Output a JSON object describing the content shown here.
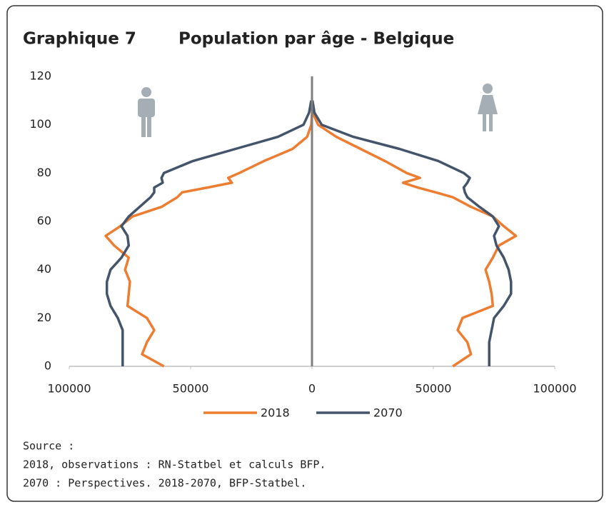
{
  "chart_data": {
    "type": "pyramid",
    "title_number": "Graphique 7",
    "title": "Population par âge - Belgique",
    "y": [
      0,
      5,
      10,
      15,
      20,
      25,
      30,
      35,
      40,
      45,
      50,
      54,
      58,
      62,
      66,
      70,
      72,
      74,
      76,
      78,
      80,
      85,
      90,
      95,
      100,
      105,
      110
    ],
    "series": [
      {
        "name": "2018",
        "color": "#ed7d31",
        "male": [
          -61000,
          -70000,
          -68000,
          -65000,
          -68000,
          -76000,
          -75500,
          -75000,
          -77000,
          -75500,
          -81500,
          -85000,
          -79000,
          -74000,
          -62000,
          -55500,
          -53500,
          -43000,
          -33000,
          -34500,
          -30000,
          -19700,
          -8000,
          -2000,
          -300,
          0,
          0
        ],
        "female": [
          58000,
          65500,
          64000,
          60000,
          62000,
          74500,
          74000,
          73000,
          71500,
          74500,
          77000,
          84000,
          79000,
          74500,
          65500,
          58000,
          51000,
          43500,
          37500,
          44500,
          39000,
          30000,
          20000,
          10000,
          2500,
          300,
          0
        ]
      },
      {
        "name": "2070",
        "color": "#44546a",
        "male": [
          -78000,
          -78000,
          -78000,
          -78000,
          -80000,
          -83000,
          -84500,
          -84500,
          -83000,
          -78500,
          -75500,
          -76000,
          -78500,
          -75500,
          -71000,
          -66500,
          -65000,
          -65000,
          -61500,
          -62000,
          -61000,
          -49000,
          -31500,
          -14000,
          -3500,
          -1200,
          -300
        ],
        "female": [
          73000,
          73000,
          73000,
          74000,
          75000,
          79000,
          82000,
          82000,
          81000,
          79000,
          76000,
          75000,
          77000,
          74500,
          69000,
          64000,
          63000,
          62500,
          64000,
          65000,
          62500,
          52000,
          36000,
          17000,
          4000,
          1000,
          200
        ]
      }
    ],
    "ylim": [
      0,
      120
    ],
    "yticks": [
      0,
      20,
      40,
      60,
      80,
      100,
      120
    ],
    "xlim": [
      -100000,
      100000
    ],
    "xticks": [
      {
        "value": -100000,
        "label": "100000"
      },
      {
        "value": -50000,
        "label": "50000"
      },
      0,
      50000,
      100000
    ],
    "notes": [
      "Source :",
      "2018, observations : RN-Statbel et calculs BFP.",
      "2070 : Perspectives. 2018-2070, BFP-Statbel."
    ]
  }
}
